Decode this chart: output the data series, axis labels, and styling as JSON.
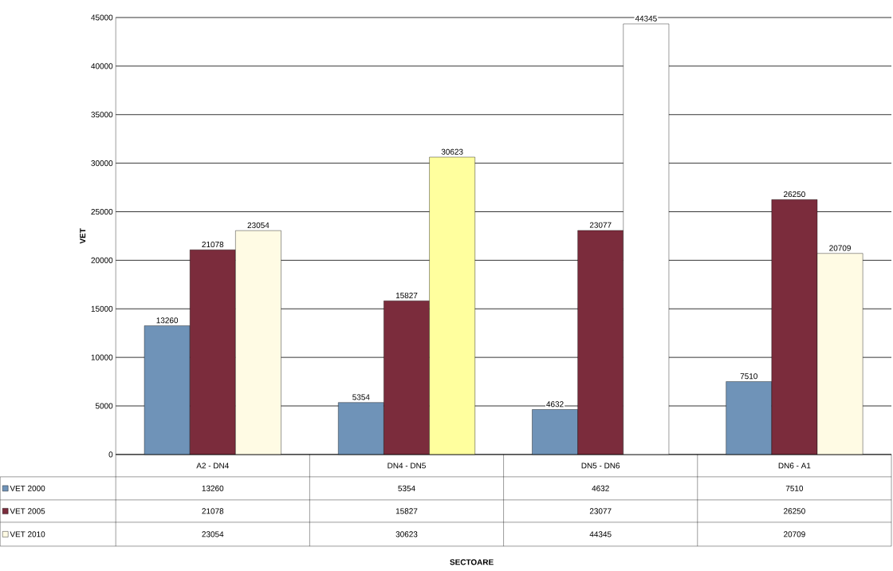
{
  "chart_data": {
    "type": "bar",
    "annotations": [
      "SECTOARE"
    ],
    "ylabel": "VET",
    "categories": [
      "A2 - DN4",
      "DN4 - DN5",
      "DN5 - DN6",
      "DN6 - A1"
    ],
    "series": [
      {
        "name": "VET 2000",
        "color": "#6f93b8",
        "values": [
          13260,
          5354,
          4632,
          7510
        ],
        "value_labels": [
          "13260",
          "5354",
          "4632",
          "7510"
        ]
      },
      {
        "name": "VET 2005",
        "color": "#7b2c3c",
        "values": [
          21078,
          15827,
          23077,
          26250
        ],
        "value_labels": [
          "21078",
          "15827",
          "23077",
          "26250"
        ]
      },
      {
        "name": "VET 2010",
        "color": "#fffbe4",
        "colors": [
          "#fffbe4",
          "#ffff9e",
          "#ffffff",
          "#fffbe4"
        ],
        "values": [
          23054,
          30623,
          44345,
          20709
        ],
        "value_labels": [
          "23054",
          "30623",
          "44345",
          "20709"
        ]
      }
    ],
    "ylim": [
      0,
      45000
    ],
    "yticks": [
      0,
      5000,
      10000,
      15000,
      20000,
      25000,
      30000,
      35000,
      40000,
      45000
    ],
    "grid": "y",
    "data_labels": true,
    "legend": "bottom left"
  }
}
